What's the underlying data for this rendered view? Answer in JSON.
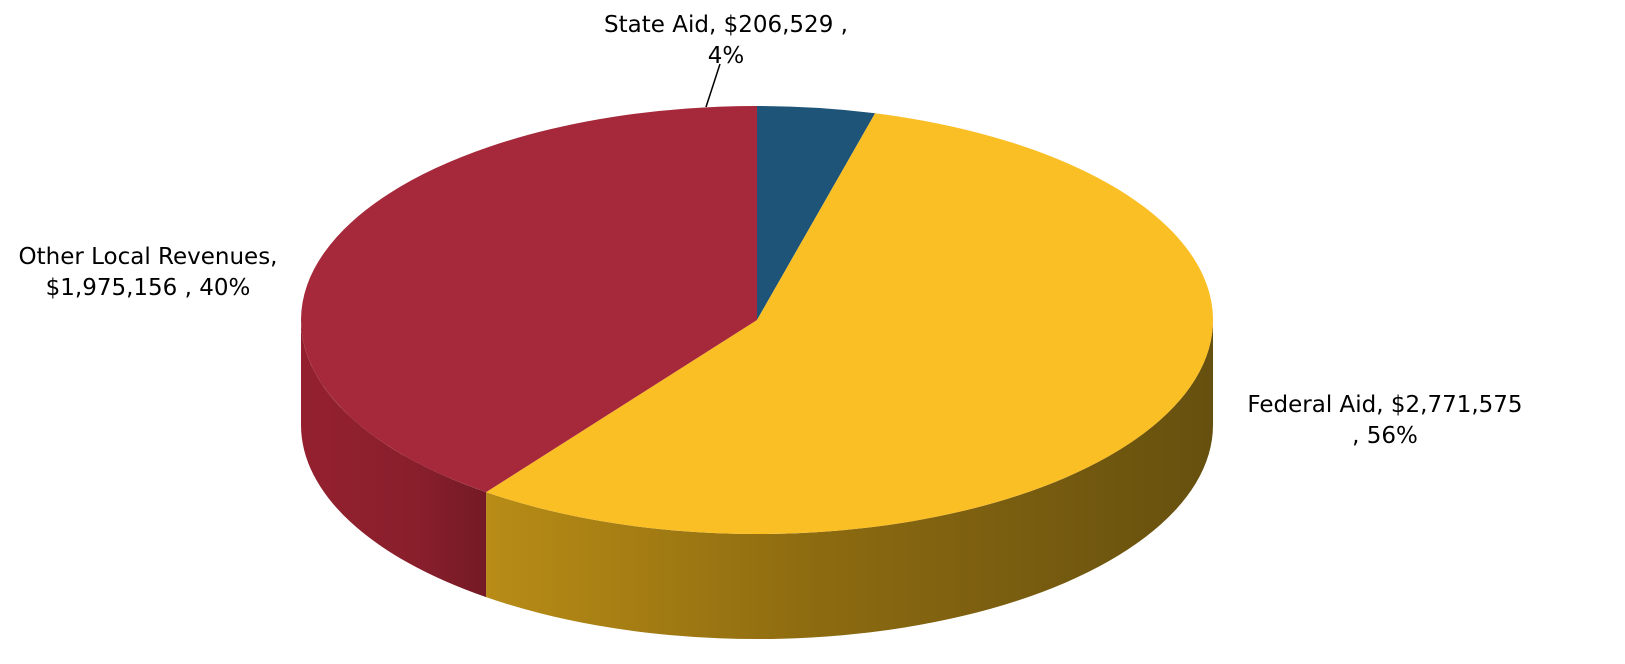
{
  "chart_data": {
    "type": "pie",
    "title": "",
    "style": "3d",
    "series": [
      {
        "name": "State Aid",
        "value": 206529,
        "percent": 4,
        "color": "#1f5479",
        "label_lines": [
          "State Aid,  $206,529 ,",
          "4%"
        ]
      },
      {
        "name": "Federal Aid",
        "value": 2771575,
        "percent": 56,
        "color": "#fbbf26",
        "label_lines": [
          "Federal Aid,  $2,771,575",
          ", 56%"
        ]
      },
      {
        "name": "Other Local Revenues",
        "value": 1975156,
        "percent": 40,
        "color": "#a6293b",
        "label_lines": [
          "Other Local Revenues,",
          "$1,975,156 , 40%"
        ]
      }
    ],
    "start_angle_deg": 0,
    "direction": "clockwise",
    "legend": "none"
  }
}
